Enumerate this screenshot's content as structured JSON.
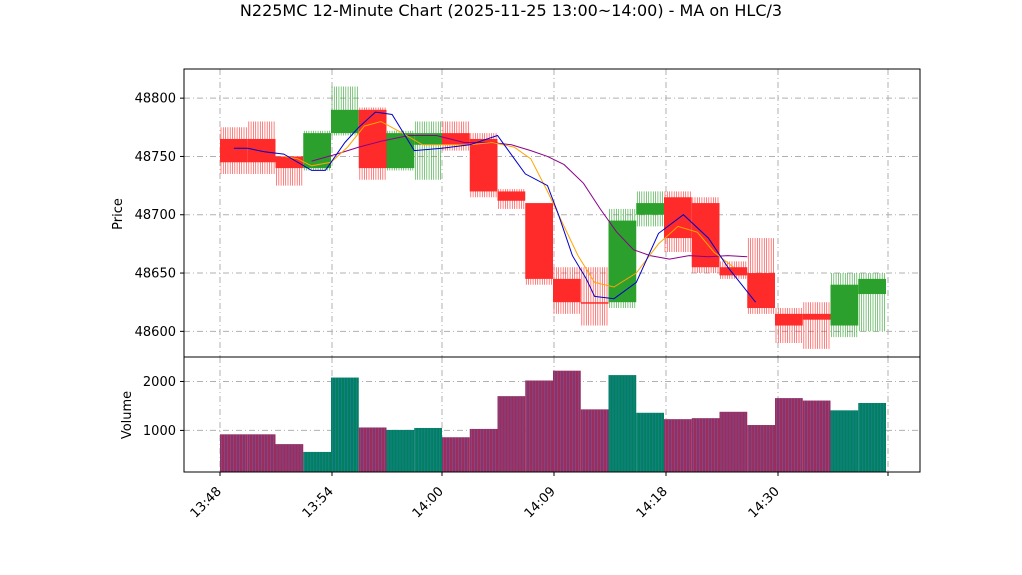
{
  "chart_data": {
    "type": "candlestick",
    "title": "N225MC 12-Minute Chart (2025-11-25 13:00~14:00) - MA on HLC/3",
    "x_tick_labels": [
      "13:48",
      "13:54",
      "14:00",
      "14:09",
      "14:18",
      "14:30",
      ""
    ],
    "price_panel": {
      "ylabel": "Price",
      "ylim": [
        48578,
        48825
      ],
      "y_ticks": [
        48600,
        48650,
        48700,
        48750,
        48800
      ],
      "grid": true
    },
    "volume_panel": {
      "ylabel": "Volume",
      "ylim": [
        150,
        2500
      ],
      "y_ticks": [
        1000,
        2000
      ],
      "grid": true
    },
    "colors": {
      "up": "#2ca02c",
      "down": "#ff2a2a",
      "ma_fast": "#0000cc",
      "ma_mid": "#ffa500",
      "ma_slow": "#8b008b",
      "vol_up": "#008060",
      "vol_down": "#9b2d5e",
      "vol_stripe": "#4a7fd4",
      "grid": "#b0b0b0"
    },
    "candles": [
      {
        "open": 48765,
        "high": 48775,
        "low": 48735,
        "close": 48745,
        "dir": "down"
      },
      {
        "open": 48765,
        "high": 48780,
        "low": 48735,
        "close": 48745,
        "dir": "down"
      },
      {
        "open": 48750,
        "high": 48750,
        "low": 48725,
        "close": 48740,
        "dir": "down"
      },
      {
        "open": 48740,
        "high": 48772,
        "low": 48738,
        "close": 48770,
        "dir": "up"
      },
      {
        "open": 48770,
        "high": 48810,
        "low": 48768,
        "close": 48790,
        "dir": "up"
      },
      {
        "open": 48790,
        "high": 48792,
        "low": 48730,
        "close": 48740,
        "dir": "down"
      },
      {
        "open": 48740,
        "high": 48772,
        "low": 48738,
        "close": 48770,
        "dir": "up"
      },
      {
        "open": 48760,
        "high": 48780,
        "low": 48730,
        "close": 48770,
        "dir": "up"
      },
      {
        "open": 48770,
        "high": 48780,
        "low": 48755,
        "close": 48760,
        "dir": "down"
      },
      {
        "open": 48765,
        "high": 48770,
        "low": 48715,
        "close": 48720,
        "dir": "down"
      },
      {
        "open": 48720,
        "high": 48722,
        "low": 48705,
        "close": 48712,
        "dir": "down"
      },
      {
        "open": 48710,
        "high": 48710,
        "low": 48640,
        "close": 48645,
        "dir": "down"
      },
      {
        "open": 48645,
        "high": 48655,
        "low": 48615,
        "close": 48625,
        "dir": "down"
      },
      {
        "open": 48625,
        "high": 48655,
        "low": 48605,
        "close": 48625,
        "dir": "down"
      },
      {
        "open": 48625,
        "high": 48705,
        "low": 48620,
        "close": 48695,
        "dir": "up"
      },
      {
        "open": 48700,
        "high": 48720,
        "low": 48690,
        "close": 48710,
        "dir": "up"
      },
      {
        "open": 48715,
        "high": 48720,
        "low": 48668,
        "close": 48680,
        "dir": "down"
      },
      {
        "open": 48710,
        "high": 48715,
        "low": 48650,
        "close": 48655,
        "dir": "down"
      },
      {
        "open": 48655,
        "high": 48660,
        "low": 48645,
        "close": 48648,
        "dir": "down"
      },
      {
        "open": 48650,
        "high": 48680,
        "low": 48615,
        "close": 48620,
        "dir": "down"
      },
      {
        "open": 48615,
        "high": 48620,
        "low": 48590,
        "close": 48605,
        "dir": "down"
      },
      {
        "open": 48610,
        "high": 48625,
        "low": 48585,
        "close": 48615,
        "dir": "down"
      },
      {
        "open": 48605,
        "high": 48650,
        "low": 48595,
        "close": 48640,
        "dir": "up"
      },
      {
        "open": 48632,
        "high": 48650,
        "low": 48600,
        "close": 48645,
        "dir": "up"
      }
    ],
    "volumes": [
      920,
      920,
      720,
      560,
      2080,
      1060,
      1010,
      1050,
      860,
      1030,
      1700,
      2020,
      2220,
      1430,
      2130,
      1360,
      1230,
      1250,
      1380,
      1110,
      1660,
      1610,
      1410,
      1560
    ],
    "ma_fast": [
      [
        0.5,
        48757
      ],
      [
        1.0,
        48757
      ],
      [
        1.6,
        48754
      ],
      [
        2.3,
        48752
      ],
      [
        3.3,
        48738
      ],
      [
        3.8,
        48738
      ],
      [
        4.5,
        48762
      ],
      [
        5.0,
        48775
      ],
      [
        5.6,
        48788
      ],
      [
        6.2,
        48786
      ],
      [
        7.0,
        48755
      ],
      [
        8.0,
        48757
      ],
      [
        9.0,
        48760
      ],
      [
        10.0,
        48768
      ],
      [
        10.7,
        48745
      ],
      [
        11.0,
        48735
      ],
      [
        11.8,
        48725
      ],
      [
        12.2,
        48700
      ],
      [
        12.7,
        48665
      ],
      [
        13.2,
        48645
      ],
      [
        13.5,
        48630
      ],
      [
        14.2,
        48628
      ],
      [
        15.0,
        48642
      ],
      [
        15.8,
        48684
      ],
      [
        16.7,
        48700
      ],
      [
        17.6,
        48680
      ],
      [
        18.3,
        48655
      ],
      [
        19.3,
        48625
      ]
    ],
    "ma_mid": [
      [
        2.3,
        48750
      ],
      [
        2.8,
        48748
      ],
      [
        3.3,
        48742
      ],
      [
        4.0,
        48745
      ],
      [
        4.6,
        48758
      ],
      [
        5.2,
        48776
      ],
      [
        5.8,
        48780
      ],
      [
        6.5,
        48771
      ],
      [
        7.3,
        48760
      ],
      [
        8.0,
        48760
      ],
      [
        9.0,
        48760
      ],
      [
        9.8,
        48762
      ],
      [
        10.6,
        48758
      ],
      [
        11.2,
        48748
      ],
      [
        11.8,
        48720
      ],
      [
        12.4,
        48690
      ],
      [
        12.9,
        48665
      ],
      [
        13.5,
        48642
      ],
      [
        14.2,
        48638
      ],
      [
        15.0,
        48650
      ],
      [
        15.8,
        48675
      ],
      [
        16.5,
        48690
      ],
      [
        17.2,
        48685
      ],
      [
        17.8,
        48668
      ],
      [
        18.5,
        48655
      ]
    ],
    "ma_slow": [
      [
        3.3,
        48746
      ],
      [
        4.2,
        48752
      ],
      [
        5.0,
        48758
      ],
      [
        5.8,
        48763
      ],
      [
        6.8,
        48768
      ],
      [
        7.8,
        48768
      ],
      [
        8.8,
        48762
      ],
      [
        9.8,
        48762
      ],
      [
        10.5,
        48760
      ],
      [
        11.2,
        48755
      ],
      [
        11.8,
        48750
      ],
      [
        12.4,
        48743
      ],
      [
        13.1,
        48727
      ],
      [
        13.7,
        48705
      ],
      [
        14.3,
        48685
      ],
      [
        14.9,
        48670
      ],
      [
        15.5,
        48665
      ],
      [
        16.2,
        48662
      ],
      [
        16.9,
        48665
      ],
      [
        17.6,
        48664
      ],
      [
        18.3,
        48665
      ],
      [
        19.0,
        48664
      ]
    ]
  }
}
